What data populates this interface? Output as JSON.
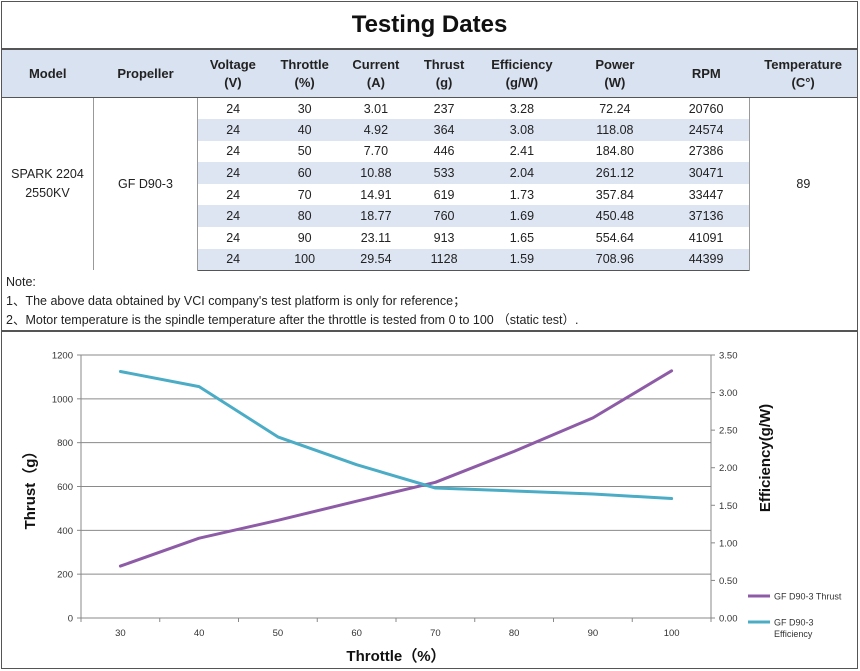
{
  "title": "Testing Dates",
  "table": {
    "headers": [
      [
        "Model"
      ],
      [
        "Propeller"
      ],
      [
        "Voltage",
        "(V)"
      ],
      [
        "Throttle",
        "(%)"
      ],
      [
        "Current",
        "(A)"
      ],
      [
        "Thrust",
        "(g)"
      ],
      [
        "Efficiency",
        "(g/W)"
      ],
      [
        "Power",
        "(W)"
      ],
      [
        "RPM"
      ],
      [
        "Temperature",
        "(C°)"
      ]
    ],
    "model": [
      "SPARK 2204",
      "2550KV"
    ],
    "propeller": "GF D90-3",
    "temperature": "89",
    "rows": [
      [
        "24",
        "30",
        "3.01",
        "237",
        "3.28",
        "72.24",
        "20760"
      ],
      [
        "24",
        "40",
        "4.92",
        "364",
        "3.08",
        "118.08",
        "24574"
      ],
      [
        "24",
        "50",
        "7.70",
        "446",
        "2.41",
        "184.80",
        "27386"
      ],
      [
        "24",
        "60",
        "10.88",
        "533",
        "2.04",
        "261.12",
        "30471"
      ],
      [
        "24",
        "70",
        "14.91",
        "619",
        "1.73",
        "357.84",
        "33447"
      ],
      [
        "24",
        "80",
        "18.77",
        "760",
        "1.69",
        "450.48",
        "37136"
      ],
      [
        "24",
        "90",
        "23.11",
        "913",
        "1.65",
        "554.64",
        "41091"
      ],
      [
        "24",
        "100",
        "29.54",
        "1128",
        "1.59",
        "708.96",
        "44399"
      ]
    ]
  },
  "notes": [
    "Note:",
    "1、The above data obtained by VCI company's test platform is only for reference；",
    "2、Motor temperature is the spindle temperature after the throttle is tested from 0 to 100 （static test）."
  ],
  "chart_data": {
    "type": "line",
    "x": [
      30,
      40,
      50,
      60,
      70,
      80,
      90,
      100
    ],
    "xticks": [
      "30",
      "40",
      "50",
      "60",
      "70",
      "80",
      "90",
      "100"
    ],
    "xlabel": "Throttle（%）",
    "ylabel": "Thrust（g）",
    "y2label": "Efficiency(g/W)",
    "ylim": [
      0,
      1200
    ],
    "y2lim": [
      0,
      3.5
    ],
    "yticks": [
      "0",
      "200",
      "400",
      "600",
      "800",
      "1000",
      "1200"
    ],
    "y2ticks": [
      "0.00",
      "0.50",
      "1.00",
      "1.50",
      "2.00",
      "2.50",
      "3.00",
      "3.50"
    ],
    "grid": true,
    "legend_position": "bottom-right",
    "series": [
      {
        "name": "GF D90-3 Thrust",
        "axis": "left",
        "color": "#8e5ca6",
        "values": [
          237,
          364,
          446,
          533,
          619,
          760,
          913,
          1128
        ]
      },
      {
        "name": "GF D90-3 Efficiency",
        "axis": "right",
        "color": "#4bacc6",
        "values": [
          3.28,
          3.08,
          2.41,
          2.04,
          1.73,
          1.69,
          1.65,
          1.59
        ],
        "legend_lines": [
          "GF D90-3",
          "Efficiency"
        ]
      }
    ]
  }
}
